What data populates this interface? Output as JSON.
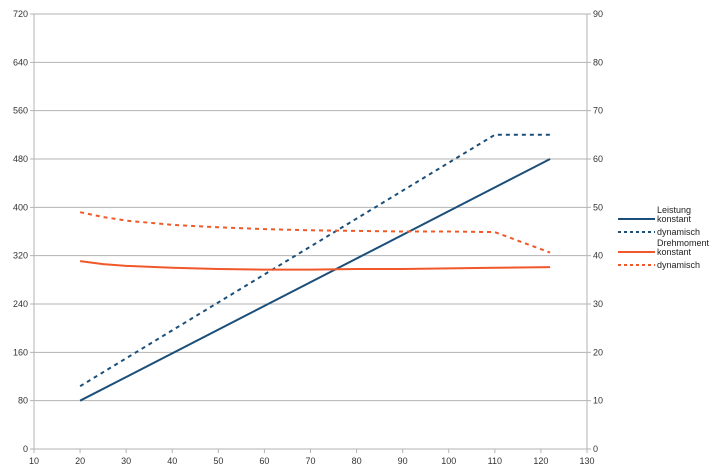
{
  "chart_data": {
    "type": "line",
    "title": "",
    "xlabel": "",
    "ylabel": "",
    "y2label": "",
    "xlim": [
      10,
      130
    ],
    "ylim": [
      0,
      720
    ],
    "y2lim": [
      0,
      90
    ],
    "grid": true,
    "legend_position": "right",
    "x_ticks": [
      10,
      20,
      30,
      40,
      50,
      60,
      70,
      80,
      90,
      100,
      110,
      120,
      130
    ],
    "y_ticks": [
      0,
      80,
      160,
      240,
      320,
      400,
      480,
      560,
      640,
      720
    ],
    "y2_ticks": [
      0,
      10,
      20,
      30,
      40,
      50,
      60,
      70,
      80,
      90
    ],
    "legend_groups": [
      {
        "title": "Leistung",
        "entries": [
          "konstant",
          "dynamisch"
        ]
      },
      {
        "title": "Drehmoment",
        "entries": [
          "konstant",
          "dynamisch"
        ]
      }
    ],
    "series": [
      {
        "name": "Leistung konstant",
        "group": "Leistung",
        "style": "solid",
        "color": "#1b4f7a",
        "axis": "left",
        "x": [
          20,
          122
        ],
        "values": [
          80,
          480
        ]
      },
      {
        "name": "Leistung dynamisch",
        "group": "Leistung",
        "style": "dashed",
        "color": "#1b4f7a",
        "axis": "left",
        "x": [
          20,
          110,
          122
        ],
        "values": [
          104,
          520,
          520
        ]
      },
      {
        "name": "Drehmoment konstant",
        "group": "Drehmoment",
        "style": "solid",
        "color": "#f0582a",
        "axis": "left",
        "x": [
          20,
          25,
          30,
          40,
          50,
          60,
          70,
          80,
          90,
          100,
          110,
          122
        ],
        "values": [
          311,
          306,
          303,
          300,
          298,
          297,
          297,
          298,
          298,
          299,
          300,
          301
        ]
      },
      {
        "name": "Drehmoment dynamisch",
        "group": "Drehmoment",
        "style": "dashed",
        "color": "#f0582a",
        "axis": "left",
        "x": [
          20,
          25,
          30,
          40,
          50,
          60,
          70,
          80,
          90,
          100,
          110,
          122
        ],
        "values": [
          392,
          384,
          378,
          371,
          367,
          364,
          362,
          361,
          360,
          360,
          359,
          325
        ]
      }
    ]
  },
  "legend": {
    "leistung_title": "Leistung",
    "leistung_konstant": "konstant",
    "leistung_dynamisch": "dynamisch",
    "drehmoment_title": "Drehmoment",
    "drehmoment_konstant": "konstant",
    "drehmoment_dynamisch": "dynamisch"
  },
  "colors": {
    "leistung": "#1b4f7a",
    "drehmoment": "#f0582a",
    "grid": "#b3b3b3",
    "axis": "#b3b3b3"
  }
}
